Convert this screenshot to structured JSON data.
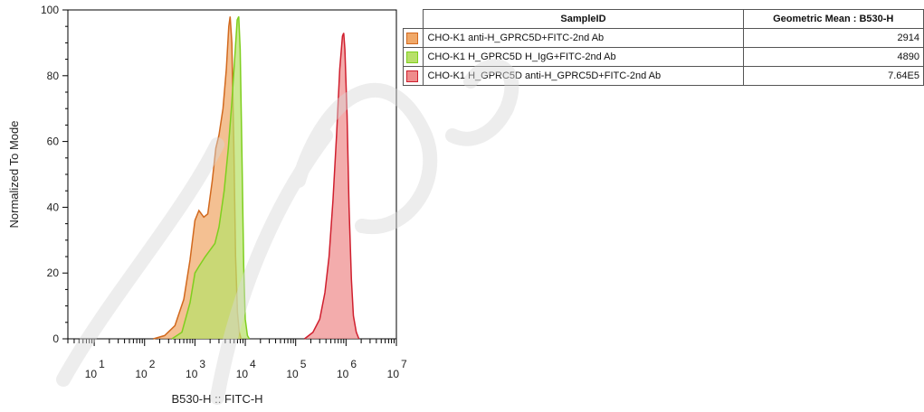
{
  "chart_data": {
    "type": "area",
    "xlabel": "B530-H :: FITC-H",
    "ylabel": "Normalized To Mode",
    "xscale": "log",
    "xlim": [
      3,
      10000000
    ],
    "ylim": [
      0,
      100
    ],
    "xticks": [
      {
        "base": "10",
        "exp": "1",
        "value": 10
      },
      {
        "base": "10",
        "exp": "2",
        "value": 100
      },
      {
        "base": "10",
        "exp": "3",
        "value": 1000
      },
      {
        "base": "10",
        "exp": "4",
        "value": 10000
      },
      {
        "base": "10",
        "exp": "5",
        "value": 100000
      },
      {
        "base": "10",
        "exp": "6",
        "value": 1000000
      },
      {
        "base": "10",
        "exp": "7",
        "value": 10000000
      }
    ],
    "yticks": [
      "0",
      "20",
      "40",
      "60",
      "80",
      "100"
    ],
    "ytick_values": [
      0,
      20,
      40,
      60,
      80,
      100
    ],
    "series": [
      {
        "name": "CHO-K1 anti-H_GPRC5D+FITC-2nd Ab",
        "color": "#f0a868",
        "stroke": "#d2691e",
        "points": [
          [
            150,
            0
          ],
          [
            250,
            1
          ],
          [
            400,
            4
          ],
          [
            600,
            12
          ],
          [
            800,
            24
          ],
          [
            1000,
            36
          ],
          [
            1200,
            39
          ],
          [
            1500,
            37
          ],
          [
            1800,
            38
          ],
          [
            2200,
            48
          ],
          [
            2600,
            58
          ],
          [
            3000,
            62
          ],
          [
            3600,
            70
          ],
          [
            4200,
            82
          ],
          [
            4700,
            95
          ],
          [
            5000,
            98
          ],
          [
            5400,
            90
          ],
          [
            5900,
            60
          ],
          [
            6400,
            25
          ],
          [
            7000,
            8
          ],
          [
            7600,
            2
          ],
          [
            8200,
            0
          ]
        ]
      },
      {
        "name": "CHO-K1 H_GPRC5D H_IgG+FITC-2nd Ab",
        "color": "#b8e06a",
        "stroke": "#7ecf1e",
        "points": [
          [
            350,
            0
          ],
          [
            550,
            2
          ],
          [
            800,
            11
          ],
          [
            1000,
            20
          ],
          [
            1200,
            22
          ],
          [
            1600,
            25
          ],
          [
            2000,
            27
          ],
          [
            2500,
            29
          ],
          [
            3000,
            34
          ],
          [
            3800,
            45
          ],
          [
            4600,
            58
          ],
          [
            5400,
            72
          ],
          [
            6200,
            86
          ],
          [
            6900,
            97
          ],
          [
            7400,
            98
          ],
          [
            7900,
            88
          ],
          [
            8600,
            55
          ],
          [
            9300,
            22
          ],
          [
            10000,
            6
          ],
          [
            11000,
            1
          ],
          [
            12000,
            0
          ]
        ]
      },
      {
        "name": "CHO-K1 H_GPRC5D anti-H_GPRC5D+FITC-2nd Ab",
        "color": "#ef8c8c",
        "stroke": "#d01f2e",
        "points": [
          [
            150000,
            0
          ],
          [
            220000,
            2
          ],
          [
            300000,
            6
          ],
          [
            380000,
            14
          ],
          [
            460000,
            25
          ],
          [
            550000,
            42
          ],
          [
            650000,
            62
          ],
          [
            750000,
            82
          ],
          [
            850000,
            92
          ],
          [
            900000,
            93
          ],
          [
            950000,
            88
          ],
          [
            1050000,
            68
          ],
          [
            1150000,
            40
          ],
          [
            1280000,
            18
          ],
          [
            1400000,
            7
          ],
          [
            1600000,
            2
          ],
          [
            1800000,
            0
          ]
        ]
      }
    ]
  },
  "legend": {
    "col_sample": "SampleID",
    "col_mean": "Geometric Mean : B530-H",
    "rows": [
      {
        "sample": "CHO-K1 anti-H_GPRC5D+FITC-2nd Ab",
        "mean": "2914",
        "color": "#f0a868",
        "border": "#d2691e"
      },
      {
        "sample": "CHO-K1 H_GPRC5D H_IgG+FITC-2nd Ab",
        "mean": "4890",
        "color": "#b8e06a",
        "border": "#7ecf1e"
      },
      {
        "sample": "CHO-K1 H_GPRC5D anti-H_GPRC5D+FITC-2nd Ab",
        "mean": "7.64E5",
        "color": "#ef8c8c",
        "border": "#d01f2e"
      }
    ]
  }
}
